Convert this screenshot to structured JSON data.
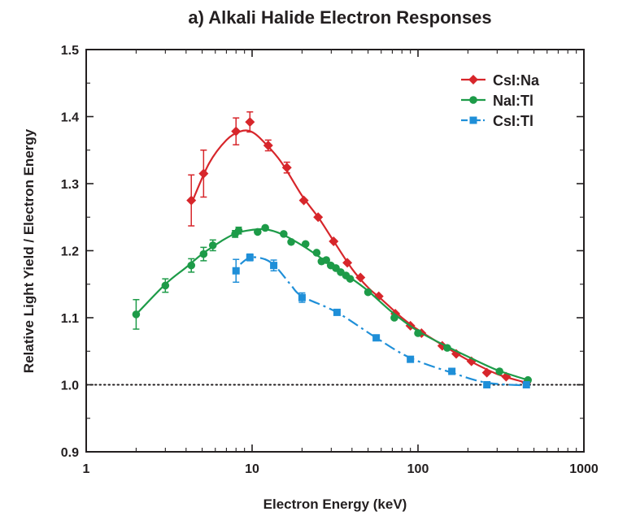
{
  "chart_data": {
    "type": "scatter",
    "title": "a) Alkali Halide Electron Responses",
    "xlabel": "Electron Energy (keV)",
    "ylabel": "Relative Light Yield / Electron Energy",
    "x_scale": "log",
    "xlim": [
      1,
      1000
    ],
    "ylim": [
      0.9,
      1.5
    ],
    "x_ticks": [
      1,
      10,
      100,
      1000
    ],
    "x_tick_labels": [
      "1",
      "10",
      "100",
      "1000"
    ],
    "y_ticks": [
      0.9,
      1.0,
      1.1,
      1.2,
      1.3,
      1.4,
      1.5
    ],
    "y_tick_labels": [
      "0.9",
      "1.0",
      "1.1",
      "1.2",
      "1.3",
      "1.4",
      "1.5"
    ],
    "reference_line": {
      "y": 1.0,
      "style": "dotted"
    },
    "legend_position": "top-right",
    "series": [
      {
        "name": "CsI:Na",
        "color": "#d7262b",
        "marker": "diamond",
        "fit_line": "solid",
        "points": [
          {
            "x": 4.3,
            "y": 1.275,
            "err": 0.038
          },
          {
            "x": 5.1,
            "y": 1.315,
            "err": 0.035
          },
          {
            "x": 8.0,
            "y": 1.378,
            "err": 0.02
          },
          {
            "x": 9.7,
            "y": 1.392,
            "err": 0.015
          },
          {
            "x": 12.5,
            "y": 1.357,
            "err": 0.008
          },
          {
            "x": 16.2,
            "y": 1.324,
            "err": 0.008
          },
          {
            "x": 20.5,
            "y": 1.275,
            "err": 0
          },
          {
            "x": 25.0,
            "y": 1.25,
            "err": 0
          },
          {
            "x": 31.0,
            "y": 1.214,
            "err": 0
          },
          {
            "x": 37.5,
            "y": 1.182,
            "err": 0
          },
          {
            "x": 45.0,
            "y": 1.16,
            "err": 0
          },
          {
            "x": 58.0,
            "y": 1.132,
            "err": 0
          },
          {
            "x": 73.0,
            "y": 1.106,
            "err": 0
          },
          {
            "x": 90.0,
            "y": 1.088,
            "err": 0
          },
          {
            "x": 105.0,
            "y": 1.077,
            "err": 0
          },
          {
            "x": 140.0,
            "y": 1.058,
            "err": 0
          },
          {
            "x": 170.0,
            "y": 1.046,
            "err": 0
          },
          {
            "x": 210.0,
            "y": 1.035,
            "err": 0
          },
          {
            "x": 260.0,
            "y": 1.018,
            "err": 0
          },
          {
            "x": 340.0,
            "y": 1.012,
            "err": 0
          },
          {
            "x": 450.0,
            "y": 1.003,
            "err": 0
          }
        ],
        "fit": [
          [
            4.3,
            1.27
          ],
          [
            5.5,
            1.33
          ],
          [
            7,
            1.365
          ],
          [
            8.5,
            1.378
          ],
          [
            10,
            1.377
          ],
          [
            12,
            1.36
          ],
          [
            15,
            1.332
          ],
          [
            20,
            1.282
          ],
          [
            25,
            1.25
          ],
          [
            30,
            1.22
          ],
          [
            40,
            1.173
          ],
          [
            50,
            1.145
          ],
          [
            60,
            1.128
          ],
          [
            80,
            1.1
          ],
          [
            100,
            1.082
          ],
          [
            150,
            1.055
          ],
          [
            200,
            1.037
          ],
          [
            300,
            1.016
          ],
          [
            450,
            1.003
          ]
        ]
      },
      {
        "name": "NaI:Tl",
        "color": "#1d9b48",
        "marker": "circle",
        "fit_line": "solid",
        "points": [
          {
            "x": 2.0,
            "y": 1.105,
            "err": 0.022
          },
          {
            "x": 3.0,
            "y": 1.148,
            "err": 0.01
          },
          {
            "x": 4.3,
            "y": 1.178,
            "err": 0.01
          },
          {
            "x": 5.1,
            "y": 1.195,
            "err": 0.01
          },
          {
            "x": 5.8,
            "y": 1.208,
            "err": 0.008
          },
          {
            "x": 7.9,
            "y": 1.225,
            "err": 0.005
          },
          {
            "x": 8.3,
            "y": 1.23,
            "err": 0.005
          },
          {
            "x": 10.8,
            "y": 1.228,
            "err": 0
          },
          {
            "x": 12.0,
            "y": 1.234,
            "err": 0
          },
          {
            "x": 15.5,
            "y": 1.225,
            "err": 0
          },
          {
            "x": 17.2,
            "y": 1.213,
            "err": 0
          },
          {
            "x": 21.0,
            "y": 1.21,
            "err": 0
          },
          {
            "x": 24.5,
            "y": 1.197,
            "err": 0
          },
          {
            "x": 26.2,
            "y": 1.184,
            "err": 0
          },
          {
            "x": 28.0,
            "y": 1.186,
            "err": 0
          },
          {
            "x": 29.8,
            "y": 1.178,
            "err": 0
          },
          {
            "x": 32.0,
            "y": 1.174,
            "err": 0
          },
          {
            "x": 34.2,
            "y": 1.168,
            "err": 0
          },
          {
            "x": 36.8,
            "y": 1.163,
            "err": 0
          },
          {
            "x": 39.0,
            "y": 1.158,
            "err": 0
          },
          {
            "x": 50.0,
            "y": 1.138,
            "err": 0
          },
          {
            "x": 72.0,
            "y": 1.1,
            "err": 0
          },
          {
            "x": 100.0,
            "y": 1.077,
            "err": 0
          },
          {
            "x": 150.0,
            "y": 1.055,
            "err": 0
          },
          {
            "x": 310.0,
            "y": 1.02,
            "err": 0
          },
          {
            "x": 460.0,
            "y": 1.007,
            "err": 0
          }
        ],
        "fit": [
          [
            2,
            1.105
          ],
          [
            3,
            1.15
          ],
          [
            4,
            1.175
          ],
          [
            5,
            1.195
          ],
          [
            6.5,
            1.214
          ],
          [
            8,
            1.226
          ],
          [
            10,
            1.231
          ],
          [
            12,
            1.232
          ],
          [
            15,
            1.225
          ],
          [
            20,
            1.208
          ],
          [
            25,
            1.192
          ],
          [
            30,
            1.178
          ],
          [
            40,
            1.158
          ],
          [
            50,
            1.14
          ],
          [
            70,
            1.108
          ],
          [
            100,
            1.08
          ],
          [
            150,
            1.057
          ],
          [
            200,
            1.042
          ],
          [
            300,
            1.022
          ],
          [
            460,
            1.007
          ]
        ]
      },
      {
        "name": "CsI:Tl",
        "color": "#1f8fd8",
        "marker": "square",
        "fit_line": "dashdot",
        "points": [
          {
            "x": 8.0,
            "y": 1.17,
            "err": 0.017
          },
          {
            "x": 9.7,
            "y": 1.19,
            "err": 0.005
          },
          {
            "x": 13.5,
            "y": 1.178,
            "err": 0.008
          },
          {
            "x": 20.0,
            "y": 1.13,
            "err": 0.007
          },
          {
            "x": 32.5,
            "y": 1.108,
            "err": 0
          },
          {
            "x": 56.0,
            "y": 1.07,
            "err": 0
          },
          {
            "x": 90.0,
            "y": 1.038,
            "err": 0
          },
          {
            "x": 160.0,
            "y": 1.02,
            "err": 0
          },
          {
            "x": 260.0,
            "y": 1.0,
            "err": 0
          },
          {
            "x": 450.0,
            "y": 1.0,
            "err": 0
          }
        ],
        "fit": [
          [
            8.5,
            1.18
          ],
          [
            9.8,
            1.19
          ],
          [
            12,
            1.187
          ],
          [
            14,
            1.175
          ],
          [
            17,
            1.15
          ],
          [
            20,
            1.132
          ],
          [
            32.5,
            1.108
          ],
          [
            56,
            1.07
          ],
          [
            90,
            1.04
          ],
          [
            160,
            1.018
          ],
          [
            260,
            1.003
          ],
          [
            450,
            0.999
          ]
        ]
      }
    ]
  }
}
